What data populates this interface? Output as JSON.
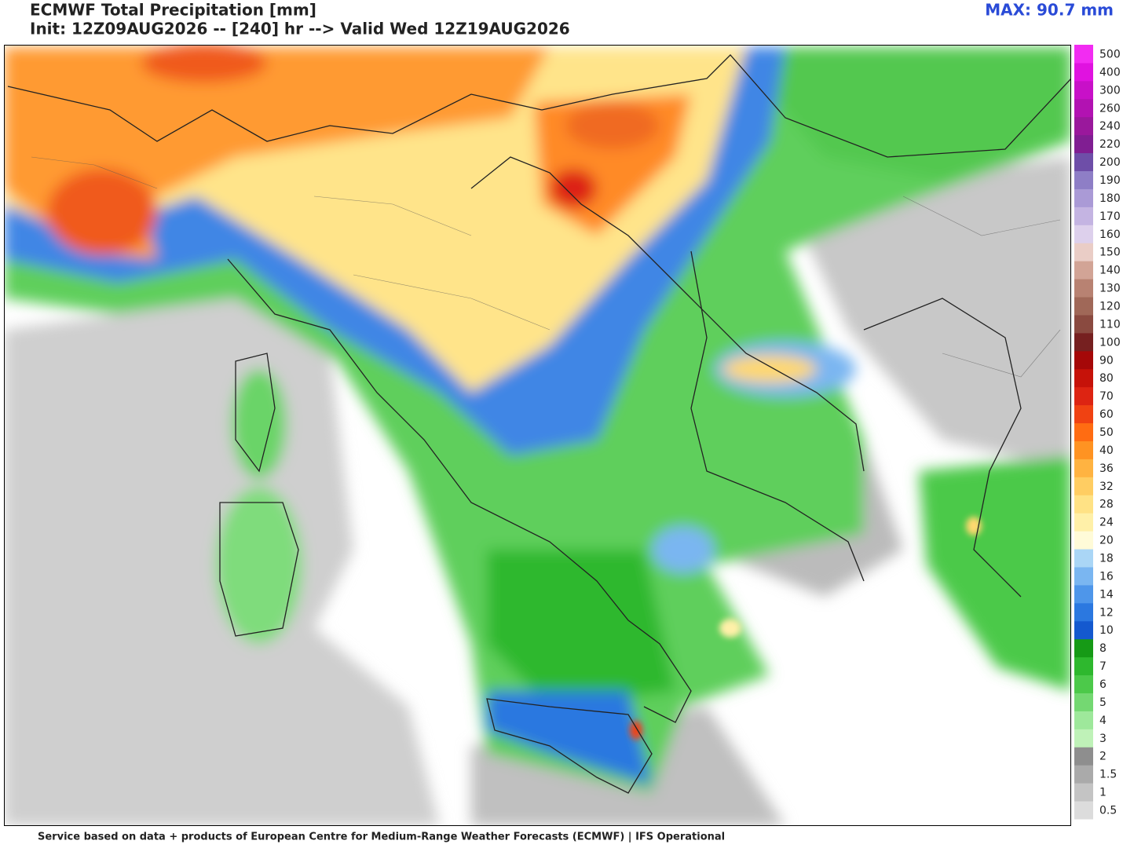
{
  "header": {
    "title": "ECMWF Total Precipitation [mm]",
    "subtitle": "Init: 12Z09AUG2026 -- [240] hr --> Valid Wed 12Z19AUG2026",
    "max": "MAX: 90.7 mm"
  },
  "colorbar": {
    "levels": [
      0.5,
      1,
      1.5,
      2,
      3,
      4,
      5,
      6,
      7,
      8,
      10,
      12,
      14,
      16,
      18,
      20,
      24,
      28,
      32,
      36,
      40,
      50,
      60,
      70,
      80,
      90,
      100,
      110,
      120,
      130,
      140,
      150,
      160,
      170,
      180,
      190,
      200,
      220,
      240,
      260,
      300,
      400,
      500
    ],
    "colors": [
      "#dcdcdc",
      "#c4c4c4",
      "#aaaaaa",
      "#8e8e8e",
      "#bff2b8",
      "#9ee89b",
      "#74d872",
      "#4cc94a",
      "#2eb82e",
      "#169a16",
      "#1459cf",
      "#2b78e0",
      "#4e96ea",
      "#7ab6f1",
      "#aad6f6",
      "#fffbd8",
      "#fff0a8",
      "#ffe285",
      "#ffcd62",
      "#ffb341",
      "#ff9322",
      "#ff6c12",
      "#f04212",
      "#dd2412",
      "#c61209",
      "#a50808",
      "#762020",
      "#8a4a40",
      "#a06858",
      "#b88272",
      "#d2a496",
      "#eacdc6",
      "#ddd0ec",
      "#c4b4e2",
      "#aa9ad6",
      "#8e7ec6",
      "#6e4ea8",
      "#801e92",
      "#9a189c",
      "#b212b2",
      "#c810c8",
      "#e012e0",
      "#f22cf2"
    ]
  },
  "footer": {
    "text": "Service based on data + products of European Centre for Medium-Range Weather Forecasts (ECMWF) | IFS Operational"
  }
}
